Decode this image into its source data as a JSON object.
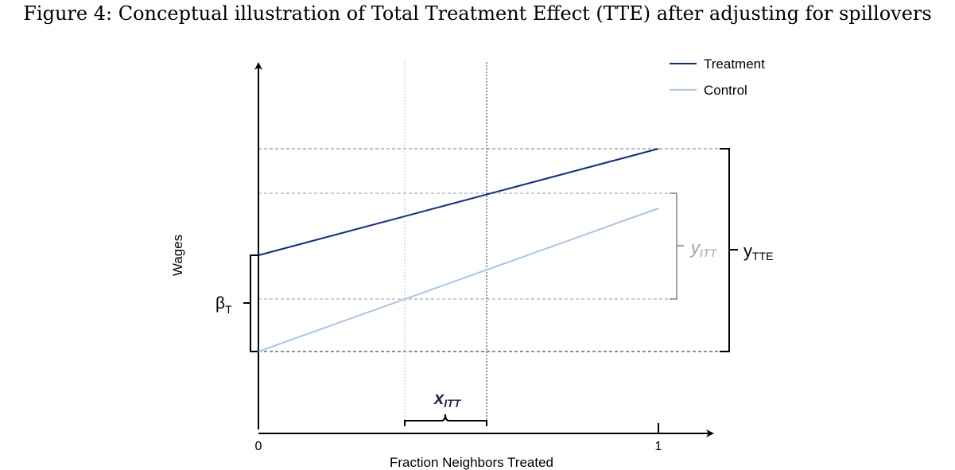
{
  "caption": "Figure 4: Conceptual illustration of Total Treatment Effect (TTE) after adjusting for spillovers",
  "colors": {
    "treatment": "#0d2a8f",
    "control": "#a9c6ec",
    "axis": "#000000",
    "guide": "#777777",
    "bracket_gray": "#a0a0a0",
    "xitt_text": "#1e2a4a"
  },
  "legend": {
    "treatment": "Treatment",
    "control": "Control"
  },
  "axes": {
    "ylabel": "Wages",
    "xlabel": "Fraction Neighbors Treated",
    "x_tick_0": "0",
    "x_tick_1": "1"
  },
  "annotations": {
    "beta_main": "β",
    "beta_sub": "T",
    "yitt_main": "y",
    "yitt_sub": "ITT",
    "ytte_main": "y",
    "ytte_sub": "TTE",
    "xitt_main": "x",
    "xitt_sub": "ITT"
  }
}
